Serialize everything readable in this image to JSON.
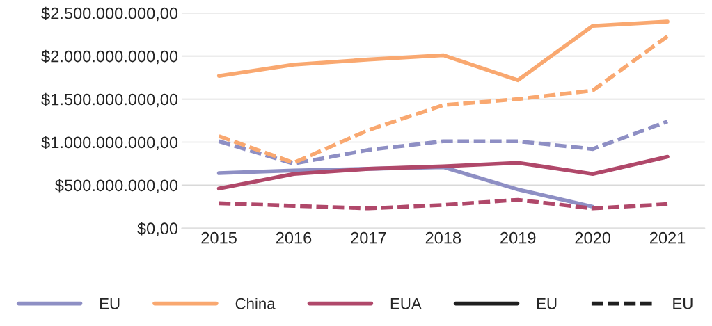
{
  "chart_data": {
    "type": "line",
    "categories": [
      "2015",
      "2016",
      "2017",
      "2018",
      "2019",
      "2020",
      "2021"
    ],
    "series": [
      {
        "name": "EU",
        "color": "#8e8fc4",
        "line_style": "solid",
        "values": [
          640000000,
          670000000,
          690000000,
          710000000,
          450000000,
          250000000,
          null
        ]
      },
      {
        "name": "China",
        "color": "#f9a870",
        "line_style": "solid",
        "values": [
          1770000000,
          1900000000,
          1960000000,
          2010000000,
          1720000000,
          2350000000,
          2400000000
        ]
      },
      {
        "name": "EUA",
        "color": "#b0486a",
        "line_style": "solid",
        "values": [
          460000000,
          630000000,
          690000000,
          720000000,
          760000000,
          630000000,
          830000000
        ]
      },
      {
        "name": "EU",
        "color": "#1f1f1f",
        "line_style": "solid",
        "values": [
          null,
          null,
          null,
          null,
          null,
          null,
          null
        ]
      },
      {
        "name": "EU",
        "color": "#1f1f1f",
        "line_style": "dashed",
        "values": [
          null,
          null,
          null,
          null,
          null,
          null,
          null
        ]
      },
      {
        "color": "#8e8fc4",
        "line_style": "dashed",
        "values": [
          1010000000,
          750000000,
          910000000,
          1010000000,
          1010000000,
          920000000,
          1240000000
        ]
      },
      {
        "color": "#f9a870",
        "line_style": "dashed",
        "values": [
          1070000000,
          760000000,
          1140000000,
          1430000000,
          1500000000,
          1600000000,
          2230000000
        ]
      },
      {
        "color": "#b0486a",
        "line_style": "dashed",
        "values": [
          290000000,
          260000000,
          230000000,
          270000000,
          330000000,
          230000000,
          280000000
        ]
      }
    ],
    "ylim": [
      0,
      2500000000
    ],
    "yticks": [
      {
        "value": 0,
        "label": "$0,00"
      },
      {
        "value": 500000000,
        "label": "$500.000.000,00"
      },
      {
        "value": 1000000000,
        "label": "$1.000.000.000,00"
      },
      {
        "value": 1500000000,
        "label": "$1.500.000.000,00"
      },
      {
        "value": 2000000000,
        "label": "$2.000.000.000,00"
      },
      {
        "value": 2500000000,
        "label": "$2.500.000.000,00"
      }
    ],
    "grid": "y",
    "legend": "bottom",
    "marker": "none"
  }
}
